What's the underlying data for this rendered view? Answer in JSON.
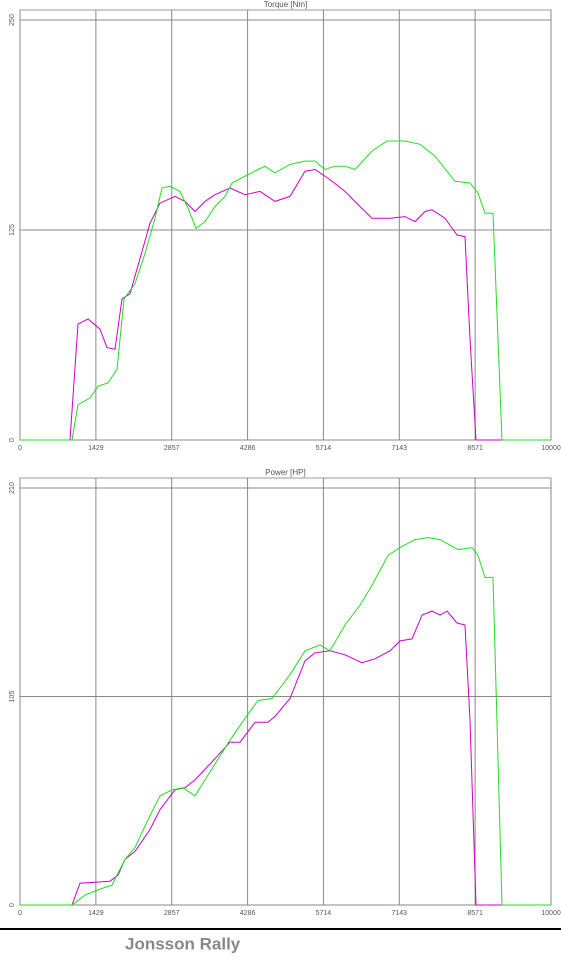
{
  "chart_data": [
    {
      "type": "line",
      "title": "Torque [Nm]",
      "xlim": [
        0,
        10000
      ],
      "ylim": [
        0,
        250
      ],
      "xticks": [
        0,
        1429,
        2857,
        4286,
        5714,
        7143,
        8571,
        10000
      ],
      "yticks": [
        0,
        125,
        250
      ],
      "grid": true,
      "series": [
        {
          "color": "#cc00cc",
          "x": [
            0,
            942,
            1092,
            1281,
            1507,
            1638,
            1789,
            1921,
            2072,
            2260,
            2448,
            2637,
            2919,
            3107,
            3296,
            3484,
            3672,
            3955,
            4237,
            4520,
            4802,
            5085,
            5367,
            5556,
            5838,
            6121,
            6403,
            6629,
            6968,
            7250,
            7439,
            7627,
            7759,
            8004,
            8230,
            8380,
            8475,
            8588,
            10000
          ],
          "values": [
            0,
            0,
            69,
            72,
            66,
            55,
            54,
            84,
            87,
            108,
            129,
            141,
            145,
            142,
            136,
            142,
            146,
            150,
            146,
            148,
            142,
            145,
            160,
            161,
            155,
            148,
            139,
            132,
            132,
            133,
            130,
            136,
            137,
            132,
            122,
            121,
            60,
            0,
            0
          ]
        },
        {
          "color": "#22dd22",
          "x": [
            0,
            979,
            1092,
            1318,
            1469,
            1657,
            1827,
            1959,
            2166,
            2354,
            2542,
            2674,
            2825,
            3013,
            3164,
            3315,
            3484,
            3672,
            3861,
            3992,
            4237,
            4482,
            4614,
            4802,
            5085,
            5367,
            5556,
            5744,
            5932,
            6121,
            6309,
            6629,
            6911,
            7250,
            7533,
            7815,
            8192,
            8475,
            8625,
            8757,
            8908,
            9077,
            10000
          ],
          "values": [
            0,
            0,
            21,
            25,
            32,
            34,
            42,
            84,
            93,
            111,
            132,
            150,
            151,
            148,
            138,
            126,
            130,
            139,
            145,
            153,
            157,
            161,
            163,
            159,
            164,
            166,
            166,
            161,
            163,
            163,
            161,
            172,
            178,
            178,
            176,
            169,
            154,
            153,
            147,
            135,
            135,
            0,
            0
          ]
        }
      ]
    },
    {
      "type": "line",
      "title": "Power [HP]",
      "xlim": [
        0,
        10000
      ],
      "ylim": [
        0,
        210
      ],
      "xticks": [
        0,
        1429,
        2857,
        4286,
        5714,
        7143,
        8571,
        10000
      ],
      "yticks": [
        0,
        105,
        210
      ],
      "grid": true,
      "series": [
        {
          "color": "#cc00cc",
          "x": [
            0,
            979,
            1130,
            1695,
            1845,
            1977,
            2166,
            2448,
            2637,
            2919,
            3107,
            3296,
            3578,
            3955,
            4143,
            4426,
            4670,
            4802,
            5085,
            5367,
            5556,
            5838,
            6121,
            6441,
            6685,
            6968,
            7156,
            7382,
            7571,
            7759,
            7910,
            8041,
            8230,
            8380,
            8475,
            8588,
            10000
          ],
          "values": [
            0,
            0,
            11,
            12,
            15,
            23,
            27,
            38,
            48,
            58,
            59,
            63,
            71,
            82,
            82,
            92,
            92,
            95,
            104,
            123,
            127,
            128,
            126,
            122,
            124,
            128,
            133,
            134,
            146,
            148,
            146,
            148,
            142,
            141,
            93,
            0,
            0
          ]
        },
        {
          "color": "#22dd22",
          "x": [
            0,
            979,
            1224,
            1507,
            1733,
            1977,
            2166,
            2411,
            2637,
            2863,
            3070,
            3296,
            3484,
            3672,
            3955,
            4237,
            4482,
            4746,
            5085,
            5367,
            5650,
            5838,
            6121,
            6403,
            6629,
            6930,
            7156,
            7439,
            7684,
            7910,
            8249,
            8512,
            8625,
            8757,
            8908,
            9077,
            10000
          ],
          "values": [
            0,
            0,
            5,
            8,
            10,
            23,
            29,
            43,
            55,
            58,
            59,
            55,
            63,
            71,
            83,
            94,
            103,
            104,
            116,
            128,
            131,
            128,
            141,
            151,
            161,
            176,
            180,
            184,
            185,
            184,
            179,
            180,
            176,
            165,
            165,
            0,
            0
          ]
        }
      ]
    }
  ],
  "footer": "Jonsson Rally"
}
